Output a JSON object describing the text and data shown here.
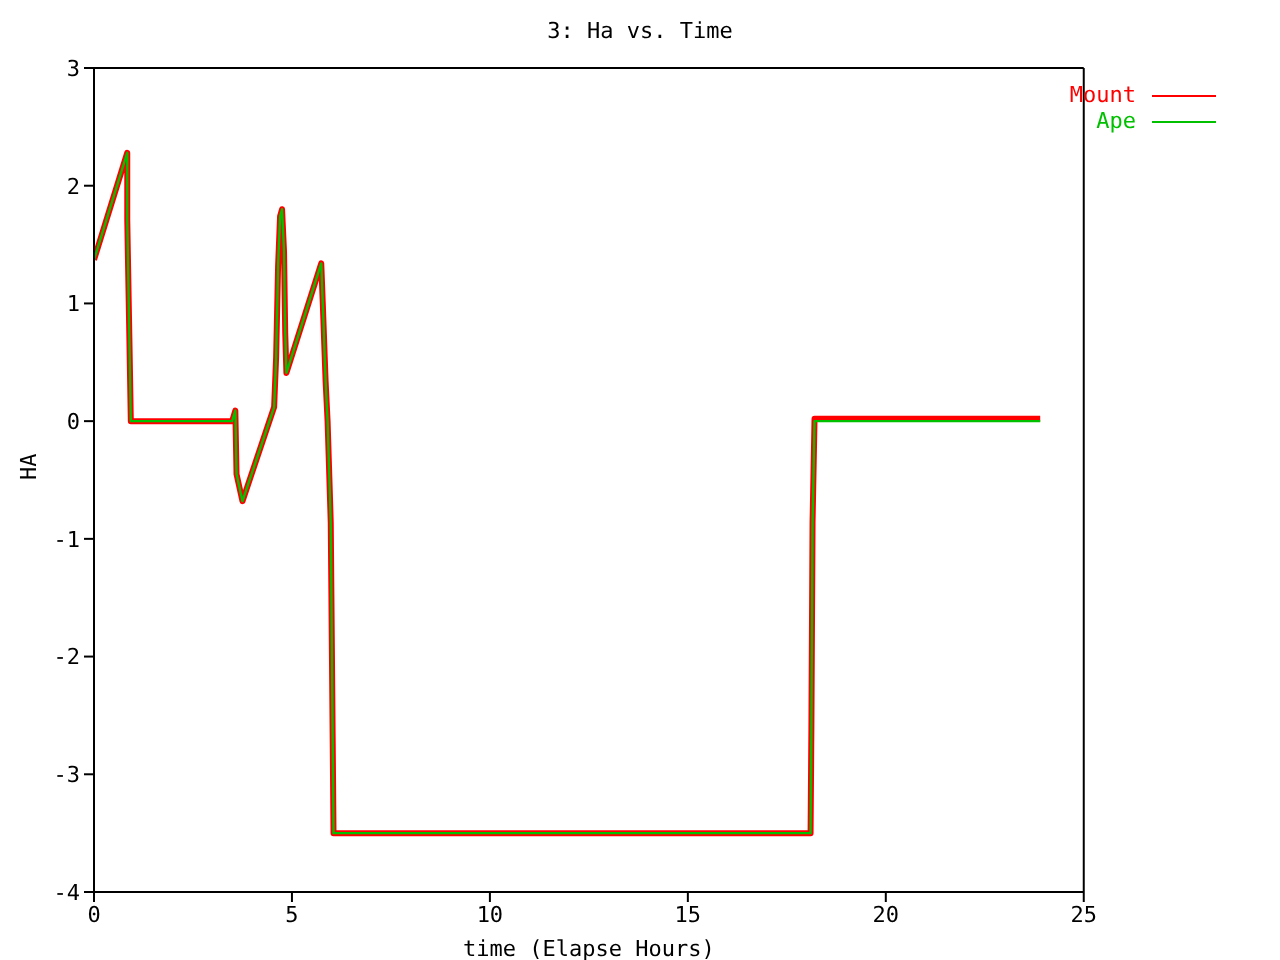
{
  "chart_data": {
    "type": "line",
    "title": "3: Ha vs. Time",
    "xlabel": "time (Elapse Hours)",
    "ylabel": "HA",
    "x": [
      0,
      0.84,
      0.84,
      0.9,
      0.93,
      3.49,
      3.57,
      3.6,
      3.75,
      4.55,
      4.6,
      4.65,
      4.7,
      4.75,
      4.8,
      4.83,
      4.86,
      5.74,
      5.78,
      5.85,
      5.9,
      5.98,
      6.05,
      18.1,
      18.12,
      18.15,
      18.2,
      23.9
    ],
    "series": [
      {
        "name": "Mount",
        "color": "#ff0000",
        "values": [
          1.37,
          2.28,
          1.71,
          0.58,
          0,
          0,
          0.09,
          -0.45,
          -0.68,
          0.12,
          0.54,
          1.32,
          1.74,
          1.8,
          1.44,
          0.75,
          0.41,
          1.34,
          0.99,
          0.34,
          0,
          -0.86,
          -3.5,
          -3.5,
          -2.63,
          -0.86,
          0.02,
          0.02
        ]
      },
      {
        "name": "Ape",
        "color": "#00c000",
        "values": [
          1.37,
          2.28,
          1.71,
          0.58,
          0,
          0,
          0.09,
          -0.45,
          -0.68,
          0.12,
          0.54,
          1.32,
          1.74,
          1.8,
          1.44,
          0.75,
          0.41,
          1.34,
          0.99,
          0.34,
          0,
          -0.86,
          -3.5,
          -3.5,
          -2.63,
          -0.86,
          0,
          0
        ]
      }
    ],
    "xlim": [
      0,
      25
    ],
    "xticks": [
      0,
      5,
      10,
      15,
      20,
      25
    ],
    "ylim": [
      -4,
      3
    ],
    "yticks": [
      -4,
      -3,
      -2,
      -1,
      0,
      1,
      2,
      3
    ],
    "grid": false,
    "legend": "top right",
    "marker": "none",
    "line_style": "solid"
  }
}
